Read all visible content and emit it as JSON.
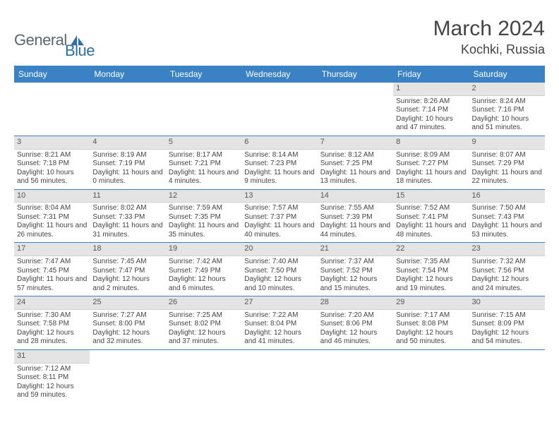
{
  "logo": {
    "part1": "General",
    "part2": "Blue"
  },
  "title": "March 2024",
  "location": "Kochki, Russia",
  "colors": {
    "header_bg": "#3b82c4",
    "header_text": "#ffffff",
    "daynum_bg": "#e4e4e4",
    "row_border": "#3b82c4",
    "body_text": "#444444",
    "logo_gray": "#5b6770",
    "logo_blue": "#2f6fa7"
  },
  "weekdays": [
    "Sunday",
    "Monday",
    "Tuesday",
    "Wednesday",
    "Thursday",
    "Friday",
    "Saturday"
  ],
  "first_weekday_index": 5,
  "days": [
    {
      "n": 1,
      "sunrise": "8:26 AM",
      "sunset": "7:14 PM",
      "dl_h": 10,
      "dl_m": 47
    },
    {
      "n": 2,
      "sunrise": "8:24 AM",
      "sunset": "7:16 PM",
      "dl_h": 10,
      "dl_m": 51
    },
    {
      "n": 3,
      "sunrise": "8:21 AM",
      "sunset": "7:18 PM",
      "dl_h": 10,
      "dl_m": 56
    },
    {
      "n": 4,
      "sunrise": "8:19 AM",
      "sunset": "7:19 PM",
      "dl_h": 11,
      "dl_m": 0
    },
    {
      "n": 5,
      "sunrise": "8:17 AM",
      "sunset": "7:21 PM",
      "dl_h": 11,
      "dl_m": 4
    },
    {
      "n": 6,
      "sunrise": "8:14 AM",
      "sunset": "7:23 PM",
      "dl_h": 11,
      "dl_m": 9
    },
    {
      "n": 7,
      "sunrise": "8:12 AM",
      "sunset": "7:25 PM",
      "dl_h": 11,
      "dl_m": 13
    },
    {
      "n": 8,
      "sunrise": "8:09 AM",
      "sunset": "7:27 PM",
      "dl_h": 11,
      "dl_m": 18
    },
    {
      "n": 9,
      "sunrise": "8:07 AM",
      "sunset": "7:29 PM",
      "dl_h": 11,
      "dl_m": 22
    },
    {
      "n": 10,
      "sunrise": "8:04 AM",
      "sunset": "7:31 PM",
      "dl_h": 11,
      "dl_m": 26
    },
    {
      "n": 11,
      "sunrise": "8:02 AM",
      "sunset": "7:33 PM",
      "dl_h": 11,
      "dl_m": 31
    },
    {
      "n": 12,
      "sunrise": "7:59 AM",
      "sunset": "7:35 PM",
      "dl_h": 11,
      "dl_m": 35
    },
    {
      "n": 13,
      "sunrise": "7:57 AM",
      "sunset": "7:37 PM",
      "dl_h": 11,
      "dl_m": 40
    },
    {
      "n": 14,
      "sunrise": "7:55 AM",
      "sunset": "7:39 PM",
      "dl_h": 11,
      "dl_m": 44
    },
    {
      "n": 15,
      "sunrise": "7:52 AM",
      "sunset": "7:41 PM",
      "dl_h": 11,
      "dl_m": 48
    },
    {
      "n": 16,
      "sunrise": "7:50 AM",
      "sunset": "7:43 PM",
      "dl_h": 11,
      "dl_m": 53
    },
    {
      "n": 17,
      "sunrise": "7:47 AM",
      "sunset": "7:45 PM",
      "dl_h": 11,
      "dl_m": 57
    },
    {
      "n": 18,
      "sunrise": "7:45 AM",
      "sunset": "7:47 PM",
      "dl_h": 12,
      "dl_m": 2
    },
    {
      "n": 19,
      "sunrise": "7:42 AM",
      "sunset": "7:49 PM",
      "dl_h": 12,
      "dl_m": 6
    },
    {
      "n": 20,
      "sunrise": "7:40 AM",
      "sunset": "7:50 PM",
      "dl_h": 12,
      "dl_m": 10
    },
    {
      "n": 21,
      "sunrise": "7:37 AM",
      "sunset": "7:52 PM",
      "dl_h": 12,
      "dl_m": 15
    },
    {
      "n": 22,
      "sunrise": "7:35 AM",
      "sunset": "7:54 PM",
      "dl_h": 12,
      "dl_m": 19
    },
    {
      "n": 23,
      "sunrise": "7:32 AM",
      "sunset": "7:56 PM",
      "dl_h": 12,
      "dl_m": 24
    },
    {
      "n": 24,
      "sunrise": "7:30 AM",
      "sunset": "7:58 PM",
      "dl_h": 12,
      "dl_m": 28
    },
    {
      "n": 25,
      "sunrise": "7:27 AM",
      "sunset": "8:00 PM",
      "dl_h": 12,
      "dl_m": 32
    },
    {
      "n": 26,
      "sunrise": "7:25 AM",
      "sunset": "8:02 PM",
      "dl_h": 12,
      "dl_m": 37
    },
    {
      "n": 27,
      "sunrise": "7:22 AM",
      "sunset": "8:04 PM",
      "dl_h": 12,
      "dl_m": 41
    },
    {
      "n": 28,
      "sunrise": "7:20 AM",
      "sunset": "8:06 PM",
      "dl_h": 12,
      "dl_m": 46
    },
    {
      "n": 29,
      "sunrise": "7:17 AM",
      "sunset": "8:08 PM",
      "dl_h": 12,
      "dl_m": 50
    },
    {
      "n": 30,
      "sunrise": "7:15 AM",
      "sunset": "8:09 PM",
      "dl_h": 12,
      "dl_m": 54
    },
    {
      "n": 31,
      "sunrise": "7:12 AM",
      "sunset": "8:11 PM",
      "dl_h": 12,
      "dl_m": 59
    }
  ]
}
